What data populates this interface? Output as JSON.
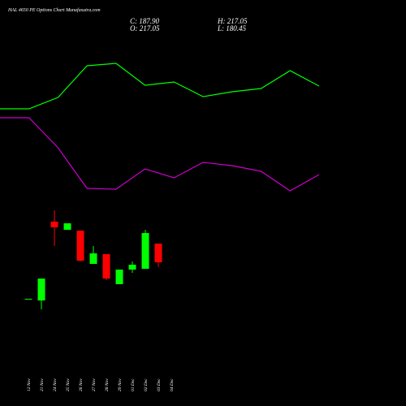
{
  "chart_data": {
    "type": "candlestick",
    "title": "HAL 4650 PE Options Chart Munafasutra.com",
    "ohlc_text": [
      "C: 187.90",
      "H: 217.05",
      "O: 217.05",
      "L: 180.45"
    ],
    "categories": [
      "12 Nov",
      "21 Nov",
      "24 Nov",
      "25 Nov",
      "26 Nov",
      "27 Nov",
      "28 Nov",
      "29 Nov",
      "01 Dec",
      "02 Dec",
      "03 Dec",
      "04 Dec"
    ],
    "open": [
      131,
      128.3,
      251.3,
      238.6,
      237.3,
      185.4,
      200.6,
      153.7,
      176.5,
      177.8,
      217.05,
      null
    ],
    "high": [
      131,
      162.5,
      269.0,
      248.7,
      237.3,
      213.2,
      200.6,
      176.5,
      189.2,
      238.6,
      217.05,
      null
    ],
    "low": [
      131,
      114.4,
      213.2,
      238.6,
      189.0,
      185.4,
      160.0,
      153.7,
      171.4,
      177.8,
      180.45,
      null
    ],
    "close": [
      131,
      162.5,
      242.4,
      248.7,
      190.4,
      201.8,
      162.5,
      176.5,
      184.1,
      233.5,
      187.9,
      null
    ],
    "up_color": "#00ff00",
    "down_color": "#ff0000",
    "ylim": [
      100,
      280
    ],
    "y2lim": [
      0,
      500
    ],
    "series": [
      {
        "color": "#00ff00",
        "axis": "y2",
        "values": [
          366,
          366,
          380,
          419,
          422,
          395,
          399,
          381,
          387,
          391,
          413,
          394
        ]
      },
      {
        "color": "#cc00cc",
        "axis": "y2",
        "values": [
          355,
          355,
          318,
          268,
          267,
          292,
          281,
          300,
          296,
          289,
          265,
          285
        ]
      }
    ]
  }
}
